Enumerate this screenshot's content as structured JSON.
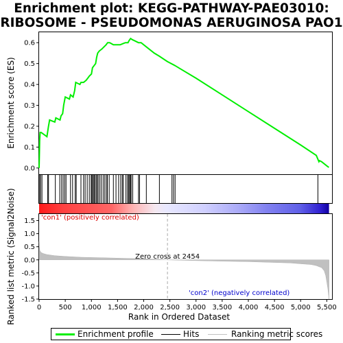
{
  "chart_data": [
    {
      "type": "line",
      "title_line1": "Enrichment plot: KEGG-PATHWAY-PAE03010:",
      "title_line2": "RIBOSOME - PSEUDOMONAS AERUGINOSA PAO1",
      "ylabel": "Enrichment score (ES)",
      "xlim": [
        0,
        5600
      ],
      "ylim": [
        -0.03,
        0.65
      ],
      "yticks": [
        "0.0",
        "0.1",
        "0.2",
        "0.3",
        "0.4",
        "0.5",
        "0.6"
      ],
      "ytick_values": [
        0,
        0.1,
        0.2,
        0.3,
        0.4,
        0.5,
        0.6
      ],
      "series": [
        {
          "name": "Enrichment profile",
          "color": "#00ee00",
          "x": [
            0,
            10,
            20,
            40,
            150,
            180,
            200,
            300,
            320,
            400,
            420,
            450,
            470,
            500,
            580,
            600,
            650,
            680,
            700,
            780,
            800,
            850,
            900,
            930,
            960,
            1000,
            1020,
            1050,
            1080,
            1100,
            1120,
            1150,
            1200,
            1240,
            1280,
            1310,
            1350,
            1420,
            1500,
            1550,
            1600,
            1650,
            1700,
            1720,
            1750,
            1780,
            1820,
            1900,
            1950,
            2050,
            2200,
            2300,
            2450,
            2600,
            2700,
            3000,
            3500,
            4000,
            4500,
            5000,
            5300,
            5350,
            5360,
            5400,
            5500,
            5540
          ],
          "values": [
            0.0,
            0.13,
            0.17,
            0.17,
            0.15,
            0.2,
            0.23,
            0.22,
            0.24,
            0.23,
            0.25,
            0.26,
            0.3,
            0.34,
            0.33,
            0.35,
            0.34,
            0.37,
            0.41,
            0.4,
            0.41,
            0.41,
            0.42,
            0.43,
            0.44,
            0.45,
            0.48,
            0.49,
            0.5,
            0.53,
            0.55,
            0.56,
            0.57,
            0.58,
            0.59,
            0.6,
            0.6,
            0.59,
            0.59,
            0.59,
            0.595,
            0.6,
            0.6,
            0.61,
            0.62,
            0.615,
            0.61,
            0.6,
            0.6,
            0.58,
            0.55,
            0.535,
            0.51,
            0.49,
            0.475,
            0.43,
            0.35,
            0.27,
            0.19,
            0.11,
            0.06,
            0.03,
            0.035,
            0.03,
            0.01,
            0.003
          ]
        }
      ]
    },
    {
      "type": "scatter",
      "series": [
        {
          "name": "Hits",
          "color": "#000000",
          "x": [
            10,
            30,
            55,
            165,
            180,
            310,
            395,
            430,
            460,
            490,
            515,
            600,
            640,
            690,
            710,
            800,
            850,
            880,
            920,
            960,
            995,
            1010,
            1030,
            1050,
            1065,
            1090,
            1110,
            1130,
            1160,
            1190,
            1225,
            1255,
            1285,
            1305,
            1340,
            1420,
            1470,
            1520,
            1560,
            1590,
            1610,
            1660,
            1690,
            1710,
            1730,
            1745,
            1760,
            1790,
            1900,
            1920,
            2050,
            2300,
            2540,
            2570,
            2600,
            5330
          ]
        }
      ]
    },
    {
      "type": "area",
      "ylabel": "Ranked list metric (Signal2Noise)",
      "xlabel": "Rank in Ordered Dataset",
      "xlim": [
        0,
        5600
      ],
      "ylim": [
        -1.5,
        1.75
      ],
      "xticks": [
        "0",
        "500",
        "1,000",
        "1,500",
        "2,000",
        "2,500",
        "3,000",
        "3,500",
        "4,000",
        "4,500",
        "5,000",
        "5,500"
      ],
      "xtick_values": [
        0,
        500,
        1000,
        1500,
        2000,
        2500,
        3000,
        3500,
        4000,
        4500,
        5000,
        5500
      ],
      "yticks": [
        "-1.5",
        "-1.0",
        "-0.5",
        "0.0",
        "0.5",
        "1.0",
        "1.5"
      ],
      "ytick_values": [
        -1.5,
        -1.0,
        -0.5,
        0.0,
        0.5,
        1.0,
        1.5
      ],
      "zero_cross_label": "Zero cross at 2454",
      "zero_cross": 2454,
      "pos_label": "'con1' (positively correlated)",
      "neg_label": "'con2' (negatively correlated)",
      "series": [
        {
          "name": "Ranking metric scores",
          "color": "#c0c0c0",
          "x": [
            0,
            5,
            15,
            40,
            80,
            150,
            300,
            500,
            800,
            1200,
            1600,
            2000,
            2454,
            3000,
            3500,
            4000,
            4500,
            4800,
            5000,
            5200,
            5300,
            5400,
            5450,
            5480,
            5500,
            5520,
            5535,
            5542
          ],
          "values": [
            0.7,
            0.5,
            0.35,
            0.28,
            0.24,
            0.2,
            0.16,
            0.13,
            0.1,
            0.08,
            0.06,
            0.04,
            0.0,
            -0.03,
            -0.05,
            -0.07,
            -0.1,
            -0.12,
            -0.15,
            -0.18,
            -0.22,
            -0.3,
            -0.42,
            -0.6,
            -0.85,
            -1.1,
            -1.35,
            -1.5
          ]
        }
      ]
    }
  ],
  "legend": {
    "enrichment_profile": "Enrichment profile",
    "hits": "Hits",
    "ranking_metric": "Ranking metric scores"
  }
}
